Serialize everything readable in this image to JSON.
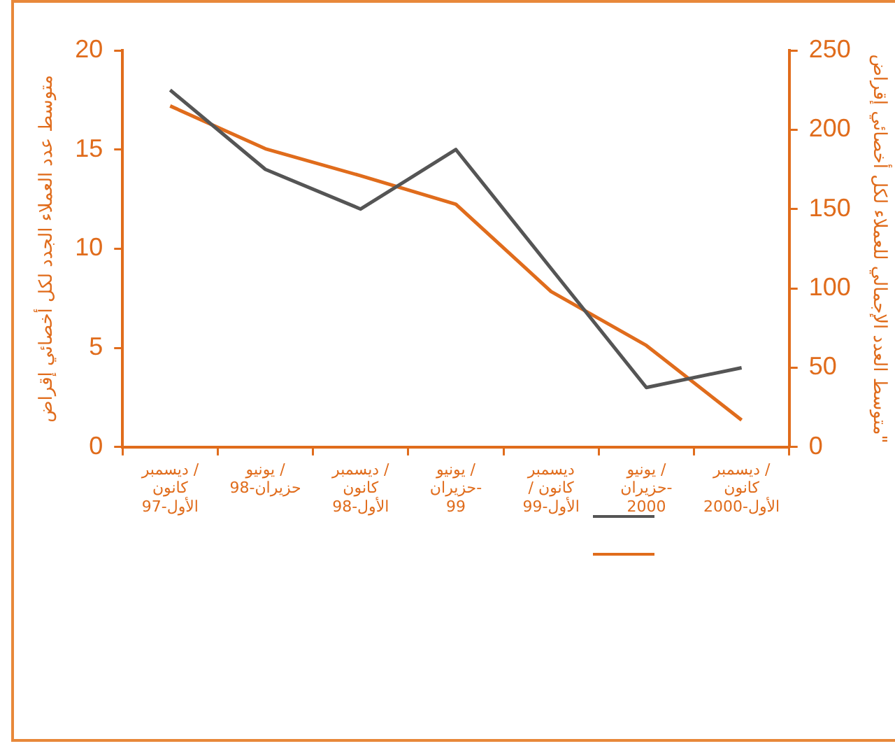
{
  "chart_data": {
    "type": "line",
    "ylabel": "متوسط عدد العملاء الجدد لكل أخصائي إقراض",
    "y2label": "متوسط العدد الإجمالي للعملاء لكل أخصائي إقراض\"",
    "categories": [
      "ديسمبر /\nكانون\nالأول-97",
      "يونيو /\nحزيران-98",
      "ديسمبر /\nكانون\nالأول-98",
      "يونيو /\nحزيران-\n99",
      "ديسمبر\n/ كانون\nالأول-99",
      "يونيو /\nحزيران-\n2000",
      "ديسمبر /\nكانون\nالأول-2000"
    ],
    "series": [
      {
        "color": "#555555",
        "values": [
          18,
          14,
          12,
          15,
          9,
          3,
          4
        ]
      },
      {
        "color": "#e06c1c",
        "axis": "y2",
        "values": [
          215,
          188,
          171,
          153,
          98,
          64,
          17
        ]
      }
    ],
    "ylim": [
      0,
      20
    ],
    "yticks": [
      0,
      5,
      10,
      15,
      20
    ],
    "y2lim": [
      0,
      250
    ],
    "y2ticks": [
      0,
      50,
      100,
      150,
      200,
      250
    ],
    "grid": false,
    "marker": "none",
    "line_style": "solid"
  }
}
